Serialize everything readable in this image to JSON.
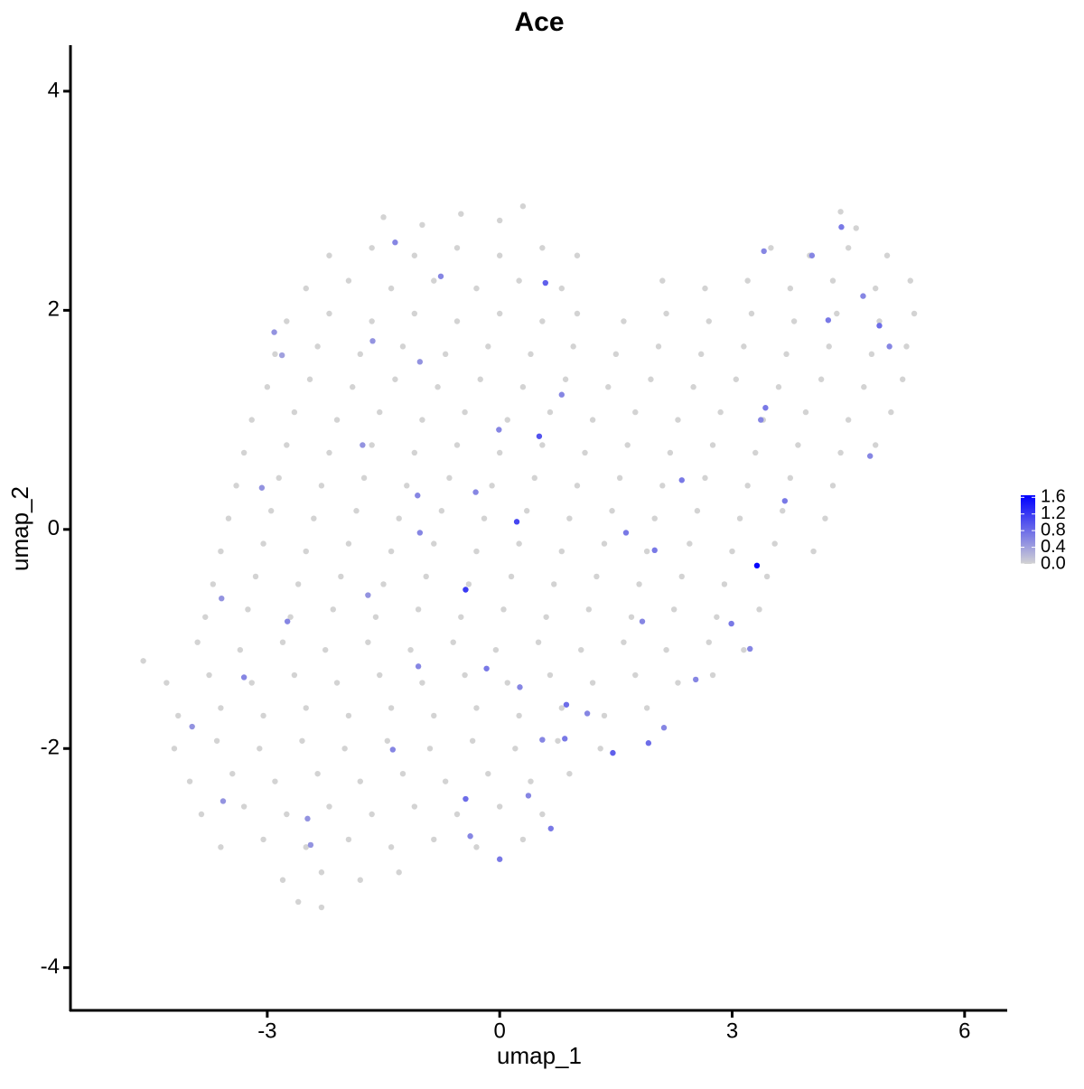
{
  "chart_data": {
    "type": "scatter",
    "title": "Ace",
    "x_label": "umap_1",
    "y_label": "umap_2",
    "xlim": [
      -5.54,
      6.55
    ],
    "ylim": [
      -4.39,
      4.42
    ],
    "xticks": [
      -3,
      0,
      3,
      6
    ],
    "yticks": [
      -4,
      -2,
      0,
      2,
      4
    ],
    "color_low": "#D3D3D3",
    "color_high": "#0000FF",
    "colorbar_lim": [
      0,
      1.65
    ],
    "colorbar_ticks": [
      {
        "value": 0,
        "label": "0.0"
      },
      0.4,
      0.8,
      1.2,
      1.6
    ],
    "x": [
      -1.5,
      -1.0,
      -0.5,
      0.0,
      0.3,
      4.4,
      4.6,
      -2.2,
      -1.65,
      -1.1,
      -0.55,
      0,
      0.55,
      1.0,
      3.5,
      4.0,
      4.5,
      5.0,
      -2.5,
      -1.95,
      -1.4,
      -0.85,
      -0.3,
      0.25,
      0.8,
      2.1,
      2.65,
      3.2,
      3.75,
      4.3,
      4.85,
      5.3,
      -2.75,
      -2.2,
      -1.65,
      -1.1,
      -0.55,
      0,
      0.55,
      1.0,
      1.6,
      2.15,
      2.7,
      3.25,
      3.8,
      4.35,
      4.9,
      5.35,
      -2.9,
      -2.35,
      -1.8,
      -1.25,
      -0.7,
      -0.15,
      0.4,
      0.95,
      1.5,
      2.05,
      2.6,
      3.15,
      3.7,
      4.25,
      4.8,
      5.25,
      -3.0,
      -2.45,
      -1.9,
      -1.35,
      -0.8,
      -0.25,
      0.3,
      0.85,
      1.4,
      1.95,
      2.5,
      3.05,
      3.6,
      4.15,
      4.7,
      5.2,
      -3.2,
      -2.65,
      -2.1,
      -1.55,
      -1.0,
      -0.45,
      0.1,
      0.65,
      1.2,
      1.75,
      2.3,
      2.85,
      3.4,
      3.95,
      4.5,
      5.05,
      -3.3,
      -2.75,
      -2.2,
      -1.65,
      -1.1,
      -0.55,
      0,
      0.55,
      1.1,
      1.65,
      2.2,
      2.75,
      3.3,
      3.85,
      4.4,
      4.85,
      -3.4,
      -2.85,
      -2.3,
      -1.75,
      -1.2,
      -0.65,
      -0.1,
      0.45,
      1.0,
      1.55,
      2.1,
      2.65,
      3.2,
      3.75,
      4.3,
      -3.5,
      -2.95,
      -2.4,
      -1.85,
      -1.3,
      -0.75,
      -0.2,
      0.35,
      0.9,
      1.45,
      2.0,
      2.55,
      3.1,
      3.65,
      4.2,
      -3.6,
      -3.05,
      -2.5,
      -1.95,
      -1.4,
      -0.85,
      -0.3,
      0.25,
      0.8,
      1.35,
      1.9,
      2.45,
      3.0,
      3.55,
      4.05,
      -3.7,
      -3.15,
      -2.6,
      -2.05,
      -1.5,
      -0.95,
      -0.4,
      0.15,
      0.7,
      1.25,
      1.8,
      2.35,
      2.9,
      3.45,
      -3.8,
      -3.25,
      -2.7,
      -2.15,
      -1.6,
      -1.05,
      -0.5,
      0.05,
      0.6,
      1.15,
      1.7,
      2.25,
      2.8,
      3.35,
      -4.6,
      -3.9,
      -3.35,
      -2.8,
      -2.25,
      -1.7,
      -1.15,
      -0.6,
      -0.05,
      0.5,
      1.05,
      1.6,
      2.15,
      2.7,
      3.15,
      -4.3,
      -3.75,
      -3.2,
      -2.65,
      -2.1,
      -1.55,
      -1.0,
      -0.45,
      0.1,
      0.65,
      1.2,
      1.75,
      2.3,
      2.75,
      -4.15,
      -3.6,
      -3.05,
      -2.5,
      -1.95,
      -1.4,
      -0.85,
      -0.3,
      0.25,
      0.8,
      1.35,
      1.9,
      -4.2,
      -3.65,
      -3.1,
      -2.55,
      -2.0,
      -1.45,
      -0.9,
      -0.35,
      0.2,
      0.75,
      1.3,
      -4.0,
      -3.45,
      -2.9,
      -2.35,
      -1.8,
      -1.25,
      -0.7,
      -0.15,
      0.4,
      0.9,
      -3.85,
      -3.3,
      -2.75,
      -2.2,
      -1.65,
      -1.1,
      -0.55,
      0,
      0.55,
      -3.6,
      -3.05,
      -2.5,
      -1.95,
      -1.4,
      -0.85,
      -0.3,
      0.3,
      -2.8,
      -2.3,
      -1.8,
      -1.3,
      -2.6,
      -2.3,
      3.32,
      -0.44,
      0.51,
      0.22,
      0.59,
      -0.44,
      0,
      0.86,
      1.46,
      1.92,
      0.84,
      3.68,
      4.24,
      4.9,
      4.41,
      2.35,
      -1.35,
      -2.91,
      -3.59,
      -3.3,
      -2.74,
      -3.57,
      -2.48,
      -1.38,
      -1.05,
      -1.03,
      -0.31,
      -0.01,
      -1.06,
      -1.7,
      -0.17,
      0.26,
      0.37,
      0.66,
      1.63,
      2.0,
      1.84,
      2.53,
      2.99,
      3.23,
      2.12,
      3.37,
      3.43,
      4.78,
      5.03,
      3.41,
      4.03,
      4.69,
      0.8,
      -1.77,
      -3.07,
      -2.81,
      -1.64,
      -0.76,
      -1.03,
      -3.97,
      -2.44,
      -0.38,
      0.55,
      1.13
    ],
    "y": [
      2.85,
      2.78,
      2.88,
      2.82,
      2.95,
      2.9,
      2.75,
      2.5,
      2.57,
      2.5,
      2.57,
      2.5,
      2.57,
      2.5,
      2.57,
      2.5,
      2.57,
      2.5,
      2.2,
      2.27,
      2.2,
      2.27,
      2.2,
      2.27,
      2.2,
      2.27,
      2.2,
      2.27,
      2.2,
      2.27,
      2.2,
      2.27,
      1.9,
      1.97,
      1.9,
      1.97,
      1.9,
      1.97,
      1.9,
      1.97,
      1.9,
      1.97,
      1.9,
      1.97,
      1.9,
      1.97,
      1.9,
      1.97,
      1.6,
      1.67,
      1.6,
      1.67,
      1.6,
      1.67,
      1.6,
      1.67,
      1.6,
      1.67,
      1.6,
      1.67,
      1.6,
      1.67,
      1.6,
      1.67,
      1.3,
      1.37,
      1.3,
      1.37,
      1.3,
      1.37,
      1.3,
      1.37,
      1.3,
      1.37,
      1.3,
      1.37,
      1.3,
      1.37,
      1.3,
      1.37,
      1.0,
      1.07,
      1.0,
      1.07,
      1.0,
      1.07,
      1.0,
      1.07,
      1.0,
      1.07,
      1.0,
      1.07,
      1.0,
      1.07,
      1.0,
      1.07,
      0.7,
      0.77,
      0.7,
      0.77,
      0.7,
      0.77,
      0.7,
      0.77,
      0.7,
      0.77,
      0.7,
      0.77,
      0.7,
      0.77,
      0.7,
      0.77,
      0.4,
      0.47,
      0.4,
      0.47,
      0.4,
      0.47,
      0.4,
      0.47,
      0.4,
      0.47,
      0.4,
      0.47,
      0.4,
      0.47,
      0.4,
      0.1,
      0.17,
      0.1,
      0.17,
      0.1,
      0.17,
      0.1,
      0.17,
      0.1,
      0.17,
      0.1,
      0.17,
      0.1,
      0.17,
      0.1,
      -0.2,
      -0.13,
      -0.2,
      -0.13,
      -0.2,
      -0.13,
      -0.2,
      -0.13,
      -0.2,
      -0.13,
      -0.2,
      -0.13,
      -0.2,
      -0.13,
      -0.2,
      -0.5,
      -0.43,
      -0.5,
      -0.43,
      -0.5,
      -0.43,
      -0.5,
      -0.43,
      -0.5,
      -0.43,
      -0.5,
      -0.43,
      -0.5,
      -0.43,
      -0.8,
      -0.73,
      -0.8,
      -0.73,
      -0.8,
      -0.73,
      -0.8,
      -0.73,
      -0.8,
      -0.73,
      -0.8,
      -0.73,
      -0.8,
      -0.73,
      -1.2,
      -1.03,
      -1.1,
      -1.03,
      -1.1,
      -1.03,
      -1.1,
      -1.03,
      -1.1,
      -1.03,
      -1.1,
      -1.03,
      -1.1,
      -1.03,
      -1.1,
      -1.4,
      -1.33,
      -1.4,
      -1.33,
      -1.4,
      -1.33,
      -1.4,
      -1.33,
      -1.4,
      -1.33,
      -1.4,
      -1.33,
      -1.4,
      -1.33,
      -1.7,
      -1.63,
      -1.7,
      -1.63,
      -1.7,
      -1.63,
      -1.7,
      -1.63,
      -1.7,
      -1.63,
      -1.7,
      -1.63,
      -2.0,
      -1.93,
      -2.0,
      -1.93,
      -2.0,
      -1.93,
      -2.0,
      -1.93,
      -2.0,
      -1.93,
      -2.0,
      -2.3,
      -2.23,
      -2.3,
      -2.23,
      -2.3,
      -2.23,
      -2.3,
      -2.23,
      -2.3,
      -2.23,
      -2.6,
      -2.53,
      -2.6,
      -2.53,
      -2.6,
      -2.53,
      -2.6,
      -2.53,
      -2.6,
      -2.9,
      -2.83,
      -2.9,
      -2.83,
      -2.9,
      -2.83,
      -2.9,
      -2.83,
      -3.2,
      -3.13,
      -3.2,
      -3.13,
      -3.4,
      -3.45,
      -0.33,
      -0.55,
      0.85,
      0.07,
      2.25,
      -2.46,
      -3.01,
      -1.6,
      -2.04,
      -1.95,
      -1.91,
      0.26,
      1.91,
      1.86,
      2.76,
      0.45,
      2.62,
      1.8,
      -0.63,
      -1.35,
      -0.84,
      -2.48,
      -2.64,
      -2.01,
      -1.25,
      -0.03,
      0.34,
      0.91,
      0.31,
      -0.6,
      -1.27,
      -1.44,
      -2.43,
      -2.73,
      -0.03,
      -0.19,
      -0.84,
      -1.37,
      -0.86,
      -1.09,
      -1.81,
      1.0,
      1.11,
      0.67,
      1.67,
      2.54,
      2.5,
      2.13,
      1.23,
      0.77,
      0.38,
      1.59,
      1.72,
      2.31,
      1.53,
      -1.8,
      -2.88,
      -2.8,
      -1.92,
      -1.68
    ],
    "values": [
      0,
      0,
      0,
      0,
      0,
      0,
      0,
      0,
      0,
      0,
      0,
      0,
      0,
      0,
      0,
      0,
      0,
      0,
      0,
      0,
      0,
      0,
      0,
      0,
      0,
      0,
      0,
      0,
      0,
      0,
      0,
      0,
      0,
      0,
      0,
      0,
      0,
      0,
      0,
      0,
      0,
      0,
      0,
      0,
      0,
      0,
      0,
      0,
      0,
      0,
      0,
      0,
      0,
      0,
      0,
      0,
      0,
      0,
      0,
      0,
      0,
      0,
      0,
      0,
      0,
      0,
      0,
      0,
      0,
      0,
      0,
      0,
      0,
      0,
      0,
      0,
      0,
      0,
      0,
      0,
      0,
      0,
      0,
      0,
      0,
      0,
      0,
      0,
      0,
      0,
      0,
      0,
      0,
      0,
      0,
      0,
      0,
      0,
      0,
      0,
      0,
      0,
      0,
      0,
      0,
      0,
      0,
      0,
      0,
      0,
      0,
      0,
      0,
      0,
      0,
      0,
      0,
      0,
      0,
      0,
      0,
      0,
      0,
      0,
      0,
      0,
      0,
      0,
      0,
      0,
      0,
      0,
      0,
      0,
      0,
      0,
      0,
      0,
      0,
      0,
      0,
      0,
      0,
      0,
      0,
      0,
      0,
      0,
      0,
      0,
      0,
      0,
      0,
      0,
      0,
      0,
      0,
      0,
      0,
      0,
      0,
      0,
      0,
      0,
      0,
      0,
      0,
      0,
      0,
      0,
      0,
      0,
      0,
      0,
      0,
      0,
      0,
      0,
      0,
      0,
      0,
      0,
      0,
      0,
      0,
      0,
      0,
      0,
      0,
      0,
      0,
      0,
      0,
      0,
      0,
      0,
      0,
      0,
      0,
      0,
      0,
      0,
      0,
      0,
      0,
      0,
      0,
      0,
      0,
      0,
      0,
      0,
      0,
      0,
      0,
      0,
      0,
      0,
      0,
      0,
      0,
      0,
      0,
      0,
      0,
      0,
      0,
      0,
      0,
      0,
      0,
      0,
      0,
      0,
      0,
      0,
      0,
      0,
      0,
      0,
      0,
      0,
      0,
      0,
      0,
      0,
      0,
      0,
      0,
      0,
      0,
      0,
      0,
      0,
      0,
      0,
      0,
      0,
      0,
      0,
      0,
      0,
      0,
      0,
      0,
      0,
      0,
      0,
      0,
      0,
      1.6,
      1.2,
      1.0,
      1.1,
      0.9,
      0.8,
      0.7,
      0.8,
      0.9,
      0.8,
      0.7,
      0.7,
      0.7,
      0.8,
      0.7,
      0.7,
      0.6,
      0.5,
      0.5,
      0.6,
      0.6,
      0.5,
      0.5,
      0.6,
      0.6,
      0.6,
      0.6,
      0.6,
      0.6,
      0.5,
      0.7,
      0.6,
      0.6,
      0.7,
      0.7,
      0.7,
      0.6,
      0.6,
      0.7,
      0.6,
      0.6,
      0.6,
      0.7,
      0.6,
      0.6,
      0.6,
      0.6,
      0.6,
      0.6,
      0.5,
      0.5,
      0.4,
      0.5,
      0.6,
      0.5,
      0.5,
      0.5,
      0.6,
      0.6,
      0.6
    ]
  }
}
